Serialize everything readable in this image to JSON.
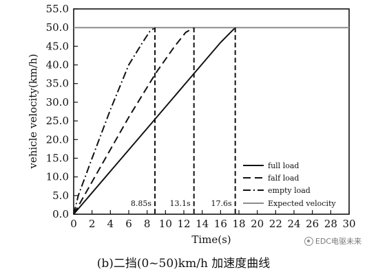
{
  "chart_data": {
    "type": "line",
    "xlabel": "Time(s)",
    "ylabel": "vehicle velocity(km/h)",
    "xlim": [
      0,
      30
    ],
    "ylim": [
      0,
      55
    ],
    "xticks": [
      "0",
      "2",
      "4",
      "6",
      "8",
      "10",
      "12",
      "14",
      "16",
      "18",
      "20",
      "22",
      "24",
      "26",
      "28",
      "30"
    ],
    "yticks": [
      "0.0",
      "5.0",
      "10.0",
      "15.0",
      "20.0",
      "25.0",
      "30.0",
      "35.0",
      "40.0",
      "45.0",
      "50.0",
      "55.0"
    ],
    "grid": false,
    "legend_position": "bottom-right",
    "series": [
      {
        "name": "full load",
        "style": "solid",
        "x": [
          0,
          4,
          8,
          12,
          16,
          17.6
        ],
        "y": [
          0,
          11.5,
          23,
          34.5,
          46,
          50
        ]
      },
      {
        "name": "falf load",
        "style": "dashed",
        "x": [
          0,
          3,
          6,
          9,
          11,
          12.2,
          13.1
        ],
        "y": [
          0,
          13,
          26,
          38,
          45,
          48.7,
          50
        ]
      },
      {
        "name": "empty load",
        "style": "dashdot",
        "x": [
          0,
          0.5,
          2,
          4,
          6,
          7.5,
          8.3,
          8.85
        ],
        "y": [
          0,
          5,
          15,
          28,
          40,
          46,
          49,
          50
        ]
      },
      {
        "name": "Expected velocity",
        "style": "gray",
        "x": [
          0,
          30
        ],
        "y": [
          50,
          50
        ]
      }
    ],
    "markers": [
      {
        "x": 8.85,
        "label": "8.85s"
      },
      {
        "x": 13.1,
        "label": "13.1s"
      },
      {
        "x": 17.6,
        "label": "17.6s"
      }
    ]
  },
  "caption": "(b)二挡(0~50)km/h 加速度曲线",
  "watermark": "EDC电驱未来"
}
